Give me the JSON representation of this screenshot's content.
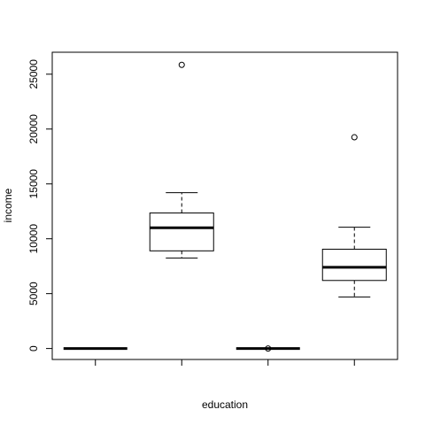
{
  "chart_data": {
    "type": "boxplot",
    "title": "",
    "xlabel": "education",
    "ylabel": "income",
    "ylim": [
      -1000,
      27000
    ],
    "y_ticks": [
      0,
      5000,
      10000,
      15000,
      20000,
      25000
    ],
    "x_tick_labels": [
      "",
      "",
      "",
      ""
    ],
    "grid": false,
    "legend": "none",
    "boxes": [
      {
        "group": 1,
        "whisker_low": 0,
        "q1": 0,
        "median": 0,
        "q3": 0,
        "whisker_high": 0,
        "outliers": []
      },
      {
        "group": 2,
        "whisker_low": 8250,
        "q1": 8900,
        "median": 11000,
        "q3": 12350,
        "whisker_high": 14200,
        "outliers": [
          25850
        ]
      },
      {
        "group": 3,
        "whisker_low": 0,
        "q1": 0,
        "median": 0,
        "q3": 0,
        "whisker_high": 0,
        "outliers": [
          0
        ]
      },
      {
        "group": 4,
        "whisker_low": 4700,
        "q1": 6200,
        "median": 7400,
        "q3": 9050,
        "whisker_high": 11050,
        "outliers": [
          19250
        ]
      }
    ]
  }
}
